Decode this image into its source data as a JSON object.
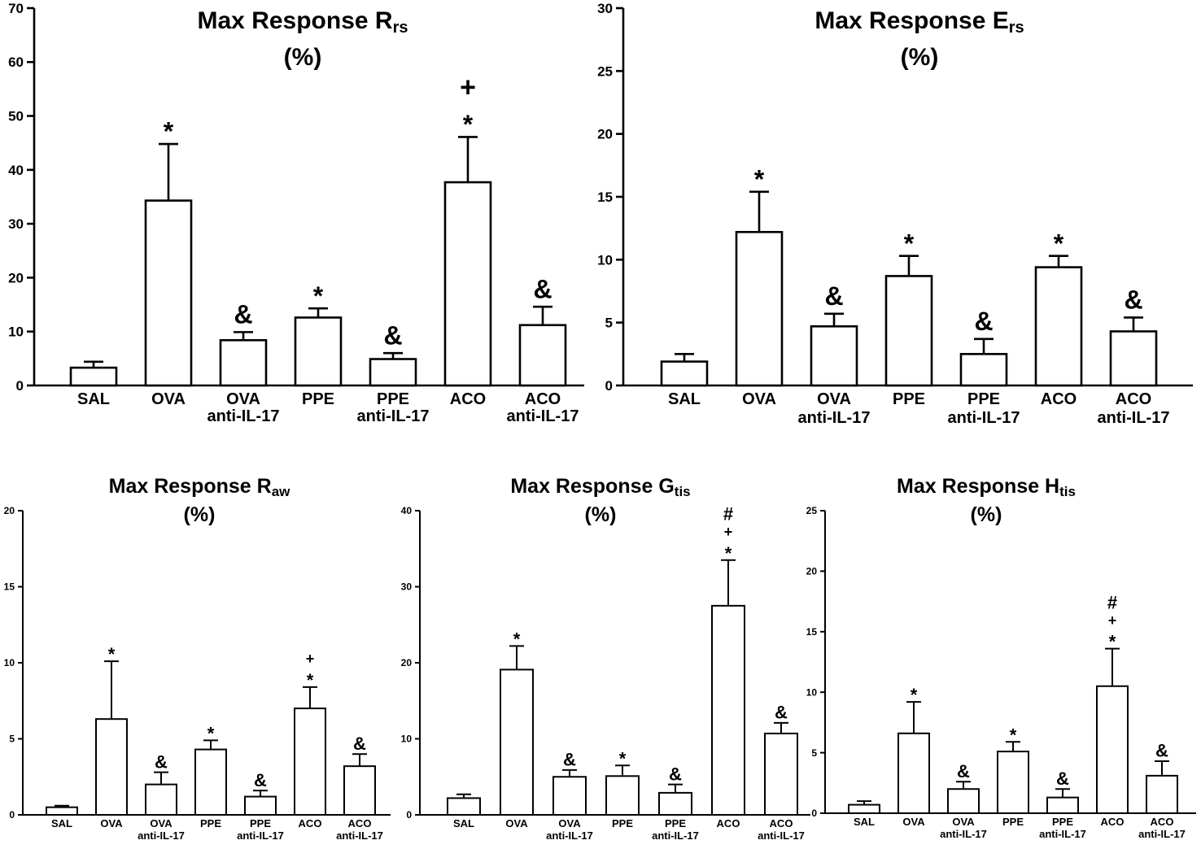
{
  "chart_data": [
    {
      "type": "bar",
      "title_main": "Max Response R",
      "title_sub": "rs",
      "title_line2": "(%)",
      "categories": [
        [
          "SAL"
        ],
        [
          "OVA"
        ],
        [
          "OVA",
          "anti-IL-17"
        ],
        [
          "PPE"
        ],
        [
          "PPE",
          "anti-IL-17"
        ],
        [
          "ACO"
        ],
        [
          "ACO",
          "anti-IL-17"
        ]
      ],
      "values": [
        3.3,
        34.3,
        8.4,
        12.6,
        4.9,
        37.7,
        11.2
      ],
      "errors": [
        1.1,
        10.5,
        1.5,
        1.7,
        1.1,
        8.4,
        3.4
      ],
      "annotations": [
        [],
        [
          "*"
        ],
        [
          "&"
        ],
        [
          "*"
        ],
        [
          "&"
        ],
        [
          "*",
          "+"
        ],
        [
          "&"
        ]
      ],
      "ylim": [
        0,
        70
      ],
      "yticks": [
        "0",
        "10",
        "20",
        "30",
        "40",
        "50",
        "60",
        "70"
      ],
      "xlabel": "",
      "ylabel": ""
    },
    {
      "type": "bar",
      "title_main": "Max Response E",
      "title_sub": "rs",
      "title_line2": "(%)",
      "categories": [
        [
          "SAL"
        ],
        [
          "OVA"
        ],
        [
          "OVA",
          "anti-IL-17"
        ],
        [
          "PPE"
        ],
        [
          "PPE",
          "anti-IL-17"
        ],
        [
          "ACO"
        ],
        [
          "ACO",
          "anti-IL-17"
        ]
      ],
      "values": [
        1.9,
        12.2,
        4.7,
        8.7,
        2.5,
        9.4,
        4.3
      ],
      "errors": [
        0.6,
        3.2,
        1.0,
        1.6,
        1.2,
        0.9,
        1.1
      ],
      "annotations": [
        [],
        [
          "*"
        ],
        [
          "&"
        ],
        [
          "*"
        ],
        [
          "&"
        ],
        [
          "*"
        ],
        [
          "&"
        ]
      ],
      "ylim": [
        0,
        30
      ],
      "yticks": [
        "0",
        "5",
        "10",
        "15",
        "20",
        "25",
        "30"
      ],
      "xlabel": "",
      "ylabel": ""
    },
    {
      "type": "bar",
      "title_main": "Max Response R",
      "title_sub": "aw",
      "title_line2": "(%)",
      "categories": [
        [
          "SAL"
        ],
        [
          "OVA"
        ],
        [
          "OVA",
          "anti-IL-17"
        ],
        [
          "PPE"
        ],
        [
          "PPE",
          "anti-IL-17"
        ],
        [
          "ACO"
        ],
        [
          "ACO",
          "anti-IL-17"
        ]
      ],
      "values": [
        0.5,
        6.3,
        2.0,
        4.3,
        1.2,
        7.0,
        3.2
      ],
      "errors": [
        0.1,
        3.8,
        0.8,
        0.6,
        0.4,
        1.4,
        0.8
      ],
      "annotations": [
        [],
        [
          "*"
        ],
        [
          "&"
        ],
        [
          "*"
        ],
        [
          "&"
        ],
        [
          "*",
          "+"
        ],
        [
          "&"
        ]
      ],
      "ylim": [
        0,
        20
      ],
      "yticks": [
        "0",
        "5",
        "10",
        "15",
        "20"
      ],
      "xlabel": "",
      "ylabel": ""
    },
    {
      "type": "bar",
      "title_main": "Max Response G",
      "title_sub": "tis",
      "title_line2": "(%)",
      "categories": [
        [
          "SAL"
        ],
        [
          "OVA"
        ],
        [
          "OVA",
          "anti-IL-17"
        ],
        [
          "PPE"
        ],
        [
          "PPE",
          "anti-IL-17"
        ],
        [
          "ACO"
        ],
        [
          "ACO",
          "anti-IL-17"
        ]
      ],
      "values": [
        2.2,
        19.1,
        5.0,
        5.1,
        2.9,
        27.5,
        10.7
      ],
      "errors": [
        0.5,
        3.1,
        0.9,
        1.4,
        1.1,
        6.0,
        1.4
      ],
      "annotations": [
        [],
        [
          "*"
        ],
        [
          "&"
        ],
        [
          "*"
        ],
        [
          "&"
        ],
        [
          "*",
          "+",
          "#"
        ],
        [
          "&"
        ]
      ],
      "ylim": [
        0,
        40
      ],
      "yticks": [
        "0",
        "10",
        "20",
        "30",
        "40"
      ],
      "xlabel": "",
      "ylabel": ""
    },
    {
      "type": "bar",
      "title_main": "Max Response H",
      "title_sub": "tis",
      "title_line2": "(%)",
      "categories": [
        [
          "SAL"
        ],
        [
          "OVA"
        ],
        [
          "OVA",
          "anti-IL-17"
        ],
        [
          "PPE"
        ],
        [
          "PPE",
          "anti-IL-17"
        ],
        [
          "ACO"
        ],
        [
          "ACO",
          "anti-IL-17"
        ]
      ],
      "values": [
        0.7,
        6.6,
        2.0,
        5.1,
        1.3,
        10.5,
        3.1
      ],
      "errors": [
        0.3,
        2.6,
        0.6,
        0.8,
        0.7,
        3.1,
        1.2
      ],
      "annotations": [
        [],
        [
          "*"
        ],
        [
          "&"
        ],
        [
          "*"
        ],
        [
          "&"
        ],
        [
          "*",
          "+",
          "#"
        ],
        [
          "&"
        ]
      ],
      "ylim": [
        0,
        25
      ],
      "yticks": [
        "0",
        "5",
        "10",
        "15",
        "20",
        "25"
      ],
      "xlabel": "",
      "ylabel": ""
    }
  ]
}
